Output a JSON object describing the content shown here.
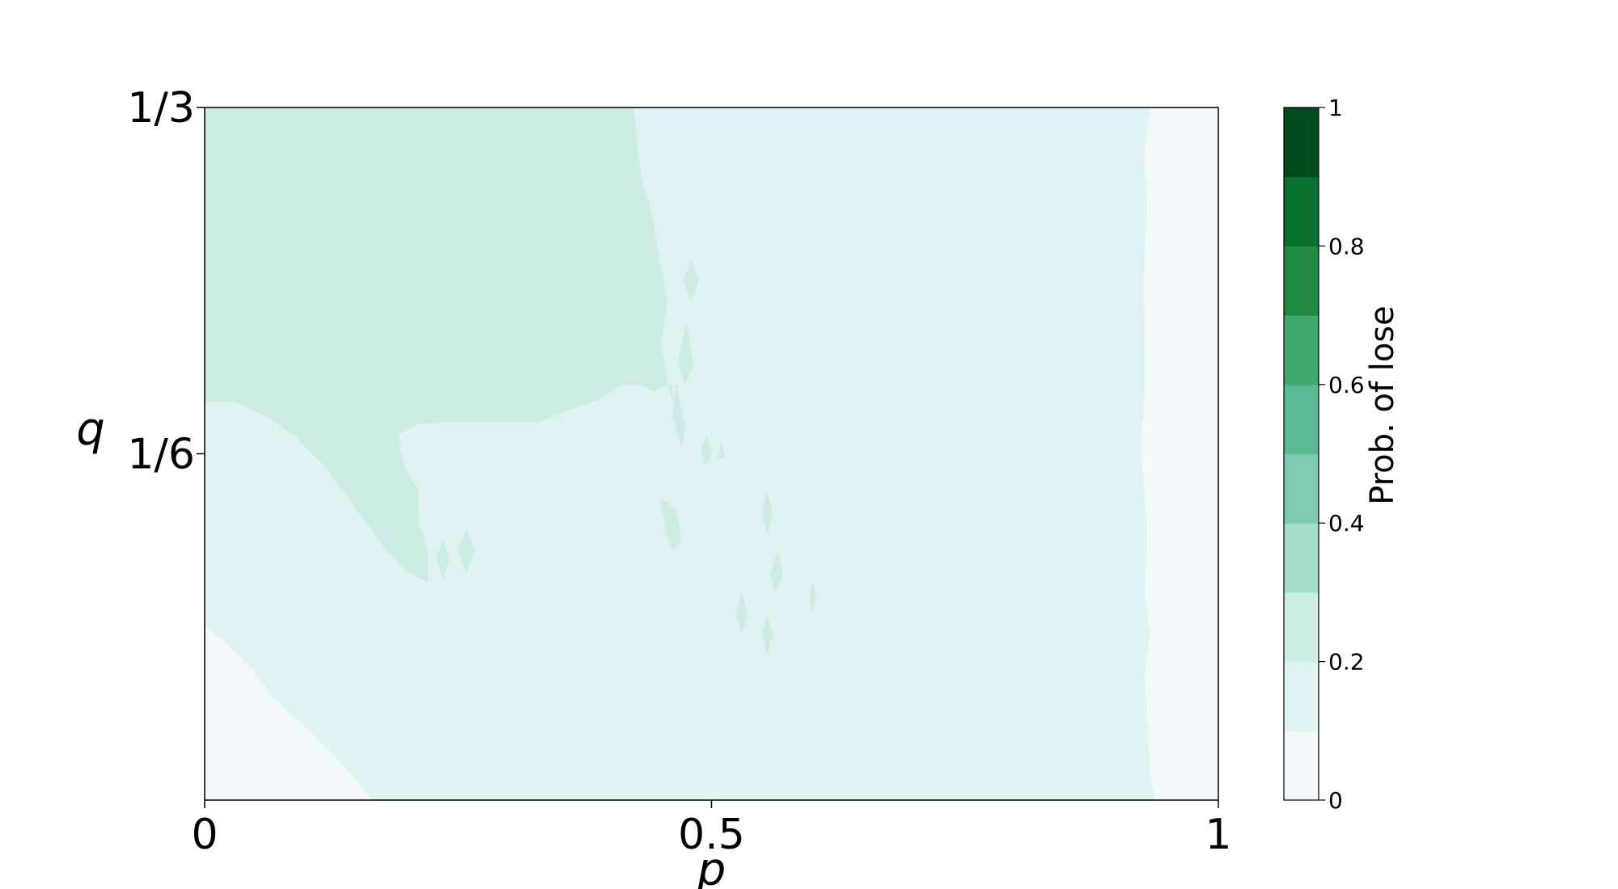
{
  "chart_data": {
    "type": "heatmap",
    "subtype": "filled-contour",
    "title": "",
    "xlabel": "p",
    "ylabel": "q",
    "xlim": [
      0,
      1
    ],
    "ylim": [
      0,
      0.3333
    ],
    "xticks": [
      {
        "value": 0,
        "label": "0"
      },
      {
        "value": 0.5,
        "label": "0.5"
      },
      {
        "value": 1,
        "label": "1"
      }
    ],
    "yticks": [
      {
        "value": 0.16667,
        "label": "1/6"
      },
      {
        "value": 0.33333,
        "label": "1/3"
      }
    ],
    "colorbar": {
      "label": "Prob. of lose",
      "range": [
        0,
        1
      ],
      "levels": [
        0,
        0.1,
        0.2,
        0.3,
        0.4,
        0.5,
        0.6,
        0.7,
        0.8,
        0.9,
        1.0
      ],
      "colors": [
        "#f3f9fb",
        "#e0f3f4",
        "#cdece4",
        "#a6dcca",
        "#7ecbb0",
        "#5bb994",
        "#3fa86d",
        "#228945",
        "#08702f",
        "#004b1c"
      ],
      "ticks": [
        {
          "value": 0,
          "label": "0"
        },
        {
          "value": 0.2,
          "label": "0.2"
        },
        {
          "value": 0.4,
          "label": "0.4"
        },
        {
          "value": 0.6,
          "label": "0.6"
        },
        {
          "value": 0.8,
          "label": "0.8"
        },
        {
          "value": 1,
          "label": "1"
        }
      ]
    },
    "regions": [
      {
        "level_range": [
          0.1,
          0.2
        ],
        "points": [
          [
            0,
            0
          ],
          [
            1,
            0
          ],
          [
            1,
            0.3333
          ],
          [
            0,
            0.3333
          ]
        ]
      },
      {
        "level_range": [
          0,
          0.1
        ],
        "points": [
          [
            0,
            0.0833
          ],
          [
            0.02,
            0.076
          ],
          [
            0.045,
            0.064
          ],
          [
            0.065,
            0.05
          ],
          [
            0.095,
            0.037
          ],
          [
            0.12,
            0.025
          ],
          [
            0.145,
            0.012
          ],
          [
            0.165,
            0
          ],
          [
            0,
            0
          ]
        ]
      },
      {
        "level_range": [
          0,
          0.1
        ],
        "points": [
          [
            0.933,
            0.3333
          ],
          [
            1,
            0.3333
          ],
          [
            1,
            0
          ],
          [
            0.938,
            0
          ],
          [
            0.934,
            0.01
          ],
          [
            0.931,
            0.03
          ],
          [
            0.928,
            0.06
          ],
          [
            0.933,
            0.08
          ],
          [
            0.928,
            0.1
          ],
          [
            0.93,
            0.13
          ],
          [
            0.924,
            0.17
          ],
          [
            0.928,
            0.2
          ],
          [
            0.927,
            0.25
          ],
          [
            0.93,
            0.29
          ],
          [
            0.927,
            0.31
          ]
        ]
      },
      {
        "level_range": [
          0.2,
          0.3
        ],
        "points": [
          [
            0,
            0.3333
          ],
          [
            0.423,
            0.3333
          ],
          [
            0.43,
            0.3
          ],
          [
            0.442,
            0.28
          ],
          [
            0.448,
            0.26
          ],
          [
            0.456,
            0.24
          ],
          [
            0.45,
            0.22
          ],
          [
            0.457,
            0.2
          ],
          [
            0.464,
            0.19
          ],
          [
            0.46,
            0.2
          ],
          [
            0.442,
            0.197
          ],
          [
            0.43,
            0.2
          ],
          [
            0.41,
            0.2
          ],
          [
            0.39,
            0.193
          ],
          [
            0.36,
            0.188
          ],
          [
            0.33,
            0.182
          ],
          [
            0.3,
            0.182
          ],
          [
            0.265,
            0.182
          ],
          [
            0.24,
            0.182
          ],
          [
            0.21,
            0.181
          ],
          [
            0.19,
            0.176
          ],
          [
            0.197,
            0.16
          ],
          [
            0.21,
            0.15
          ],
          [
            0.21,
            0.135
          ],
          [
            0.22,
            0.12
          ],
          [
            0.22,
            0.105
          ],
          [
            0.2,
            0.11
          ],
          [
            0.18,
            0.12
          ],
          [
            0.15,
            0.14
          ],
          [
            0.12,
            0.16
          ],
          [
            0.09,
            0.175
          ],
          [
            0.06,
            0.185
          ],
          [
            0.03,
            0.192
          ],
          [
            0,
            0.1917
          ]
        ]
      },
      {
        "level_range": [
          0.2,
          0.3
        ],
        "points": [
          [
            0.48,
            0.26
          ],
          [
            0.487,
            0.25
          ],
          [
            0.48,
            0.24
          ],
          [
            0.473,
            0.25
          ]
        ]
      },
      {
        "level_range": [
          0.2,
          0.3
        ],
        "points": [
          [
            0.475,
            0.23
          ],
          [
            0.482,
            0.21
          ],
          [
            0.474,
            0.2
          ],
          [
            0.467,
            0.21
          ]
        ]
      },
      {
        "level_range": [
          0.2,
          0.3
        ],
        "points": [
          [
            0.465,
            0.2
          ],
          [
            0.474,
            0.18
          ],
          [
            0.47,
            0.17
          ],
          [
            0.462,
            0.185
          ]
        ]
      },
      {
        "level_range": [
          0.2,
          0.3
        ],
        "points": [
          [
            0.51,
            0.173
          ],
          [
            0.513,
            0.165
          ],
          [
            0.507,
            0.165
          ]
        ]
      },
      {
        "level_range": [
          0.2,
          0.3
        ],
        "points": [
          [
            0.495,
            0.175
          ],
          [
            0.5,
            0.168
          ],
          [
            0.495,
            0.161
          ],
          [
            0.49,
            0.168
          ]
        ]
      },
      {
        "level_range": [
          0.2,
          0.3
        ],
        "points": [
          [
            0.45,
            0.145
          ],
          [
            0.465,
            0.14
          ],
          [
            0.47,
            0.125
          ],
          [
            0.462,
            0.12
          ],
          [
            0.455,
            0.13
          ]
        ]
      },
      {
        "level_range": [
          0.2,
          0.3
        ],
        "points": [
          [
            0.555,
            0.148
          ],
          [
            0.56,
            0.138
          ],
          [
            0.555,
            0.128
          ],
          [
            0.55,
            0.138
          ]
        ]
      },
      {
        "level_range": [
          0.2,
          0.3
        ],
        "points": [
          [
            0.565,
            0.12
          ],
          [
            0.57,
            0.108
          ],
          [
            0.563,
            0.1
          ],
          [
            0.558,
            0.108
          ]
        ]
      },
      {
        "level_range": [
          0.2,
          0.3
        ],
        "points": [
          [
            0.53,
            0.1
          ],
          [
            0.535,
            0.09
          ],
          [
            0.53,
            0.08
          ],
          [
            0.525,
            0.09
          ]
        ]
      },
      {
        "level_range": [
          0.2,
          0.3
        ],
        "points": [
          [
            0.555,
            0.088
          ],
          [
            0.56,
            0.08
          ],
          [
            0.555,
            0.07
          ],
          [
            0.55,
            0.08
          ]
        ]
      },
      {
        "level_range": [
          0.2,
          0.3
        ],
        "points": [
          [
            0.258,
            0.13
          ],
          [
            0.266,
            0.12
          ],
          [
            0.258,
            0.11
          ],
          [
            0.25,
            0.12
          ]
        ]
      },
      {
        "level_range": [
          0.2,
          0.3
        ],
        "points": [
          [
            0.235,
            0.125
          ],
          [
            0.241,
            0.116
          ],
          [
            0.235,
            0.107
          ],
          [
            0.229,
            0.116
          ]
        ]
      },
      {
        "level_range": [
          0.2,
          0.3
        ],
        "points": [
          [
            0.6,
            0.105
          ],
          [
            0.603,
            0.098
          ],
          [
            0.6,
            0.091
          ],
          [
            0.597,
            0.098
          ]
        ]
      }
    ]
  }
}
